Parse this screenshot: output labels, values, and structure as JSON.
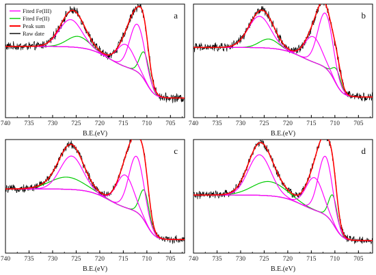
{
  "chart_data": [
    {
      "type": "line",
      "panel_label": "a",
      "xlabel": "B.E.(eV)",
      "xlim": [
        740,
        702
      ],
      "ylim": [
        0,
        1
      ],
      "x_ticks": [
        740,
        735,
        730,
        725,
        720,
        715,
        710,
        705
      ],
      "y_ticks_shown": false,
      "legend": true,
      "legend_position": "top-left",
      "series": [
        {
          "name": "Fited Fe(III)",
          "color": "#ff00ff",
          "components": [
            {
              "center": 726.2,
              "height": 0.27,
              "width": 2.4
            },
            {
              "center": 712.0,
              "height": 0.47,
              "width": 1.6
            },
            {
              "center": 714.5,
              "height": 0.22,
              "width": 1.8
            }
          ]
        },
        {
          "name": "Fited Fe(II)",
          "color": "#00cc00",
          "components": [
            {
              "center": 724.6,
              "height": 0.11,
              "width": 2.3
            },
            {
              "center": 710.5,
              "height": 0.27,
              "width": 1.0
            }
          ]
        },
        {
          "name": "Peak sum",
          "color": "#ff0000"
        },
        {
          "name": "Raw date",
          "color": "#000000"
        }
      ],
      "background": {
        "left": 0.65,
        "mid": 0.41,
        "right": 0.14,
        "center": 718,
        "step_at": 710,
        "noise": 0.035
      }
    },
    {
      "type": "line",
      "panel_label": "b",
      "xlabel": "B.E.(eV)",
      "xlim": [
        740,
        702
      ],
      "ylim": [
        0,
        1
      ],
      "x_ticks": [
        740,
        735,
        730,
        725,
        720,
        715,
        710,
        705
      ],
      "y_ticks_shown": false,
      "legend": false,
      "series": [
        {
          "name": "Fited Fe(III)",
          "color": "#ff00ff",
          "components": [
            {
              "center": 726.0,
              "height": 0.31,
              "width": 2.4
            },
            {
              "center": 712.0,
              "height": 0.54,
              "width": 1.6
            },
            {
              "center": 714.6,
              "height": 0.25,
              "width": 1.8
            }
          ]
        },
        {
          "name": "Fited Fe(II)",
          "color": "#00cc00",
          "components": [
            {
              "center": 724.0,
              "height": 0.09,
              "width": 2.0
            },
            {
              "center": 709.6,
              "height": 0.15,
              "width": 0.9
            }
          ]
        },
        {
          "name": "Peak sum",
          "color": "#ff0000"
        },
        {
          "name": "Raw date",
          "color": "#000000"
        }
      ],
      "background": {
        "left": 0.64,
        "mid": 0.45,
        "right": 0.15,
        "center": 717,
        "step_at": 710,
        "noise": 0.035
      }
    },
    {
      "type": "line",
      "panel_label": "c",
      "xlabel": "B.E.(eV)",
      "xlim": [
        740,
        702
      ],
      "ylim": [
        0,
        1
      ],
      "x_ticks": [
        740,
        735,
        730,
        725,
        720,
        715,
        710,
        705
      ],
      "y_ticks_shown": false,
      "legend": false,
      "series": [
        {
          "name": "Fited Fe(III)",
          "color": "#ff00ff",
          "components": [
            {
              "center": 726.0,
              "height": 0.33,
              "width": 2.4
            },
            {
              "center": 712.2,
              "height": 0.55,
              "width": 1.6
            },
            {
              "center": 714.6,
              "height": 0.32,
              "width": 1.8
            }
          ]
        },
        {
          "name": "Fited Fe(II)",
          "color": "#00cc00",
          "components": [
            {
              "center": 727.0,
              "height": 0.12,
              "width": 3.5
            },
            {
              "center": 710.5,
              "height": 0.3,
              "width": 1.0
            }
          ]
        },
        {
          "name": "Peak sum",
          "color": "#ff0000"
        },
        {
          "name": "Raw date",
          "color": "#000000"
        }
      ],
      "background": {
        "left": 0.58,
        "mid": 0.36,
        "right": 0.08,
        "center": 718,
        "step_at": 710,
        "noise": 0.03
      }
    },
    {
      "type": "line",
      "panel_label": "d",
      "xlabel": "B.E.(eV)",
      "xlim": [
        740,
        702
      ],
      "ylim": [
        0,
        1
      ],
      "x_ticks": [
        740,
        735,
        730,
        725,
        720,
        715,
        710,
        705
      ],
      "y_ticks_shown": false,
      "legend": false,
      "series": [
        {
          "name": "Fited Fe(III)",
          "color": "#ff00ff",
          "components": [
            {
              "center": 726.0,
              "height": 0.4,
              "width": 2.4
            },
            {
              "center": 712.0,
              "height": 0.58,
              "width": 1.5
            },
            {
              "center": 714.3,
              "height": 0.32,
              "width": 1.8
            }
          ]
        },
        {
          "name": "Fited Fe(II)",
          "color": "#00cc00",
          "components": [
            {
              "center": 724.0,
              "height": 0.14,
              "width": 3.5
            },
            {
              "center": 710.4,
              "height": 0.28,
              "width": 0.9
            }
          ]
        },
        {
          "name": "Peak sum",
          "color": "#ff0000"
        },
        {
          "name": "Raw date",
          "color": "#000000"
        }
      ],
      "background": {
        "left": 0.52,
        "mid": 0.33,
        "right": 0.07,
        "center": 717,
        "step_at": 710,
        "noise": 0.03
      }
    }
  ]
}
